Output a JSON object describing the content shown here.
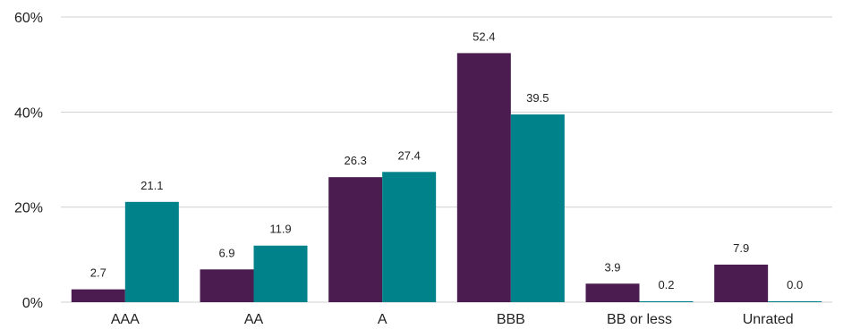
{
  "chart_data": {
    "type": "bar",
    "categories": [
      "AAA",
      "AA",
      "A",
      "BBB",
      "BB or less",
      "Unrated"
    ],
    "series": [
      {
        "values": [
          2.7,
          6.9,
          26.3,
          52.4,
          3.9,
          7.9
        ],
        "color": "#4a1c4f"
      },
      {
        "values": [
          21.1,
          11.9,
          27.4,
          39.5,
          0.2,
          0.0
        ],
        "color": "#00828a"
      }
    ],
    "data_labels": [
      [
        "2.7",
        "6.9",
        "26.3",
        "52.4",
        "3.9",
        "7.9"
      ],
      [
        "21.1",
        "11.9",
        "27.4",
        "39.5",
        "0.2",
        "0.0"
      ]
    ],
    "y_ticks": [
      0,
      20,
      40,
      60
    ],
    "y_tick_labels": [
      "0%",
      "20%",
      "40%",
      "60%"
    ],
    "ylim": [
      0,
      60
    ],
    "grid": true,
    "legend": "none"
  }
}
